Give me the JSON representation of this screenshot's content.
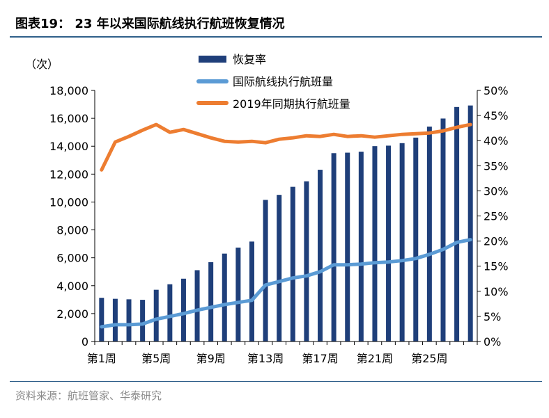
{
  "header": {
    "title": "图表19：  23 年以来国际航线执行航班恢复情况"
  },
  "footer": {
    "source": "资料来源：航班管家、华泰研究"
  },
  "chart_data": {
    "type": "bar",
    "title": "图表19：  23 年以来国际航线执行航班恢复情况",
    "y_left_unit": "（次）",
    "ylim": [
      0,
      18000
    ],
    "y2lim": [
      0,
      0.5
    ],
    "yticks": [
      "0",
      "2,000",
      "4,000",
      "6,000",
      "8,000",
      "10,000",
      "12,000",
      "14,000",
      "16,000",
      "18,000"
    ],
    "y2ticks": [
      "0%",
      "5%",
      "10%",
      "15%",
      "20%",
      "25%",
      "30%",
      "35%",
      "40%",
      "45%",
      "50%"
    ],
    "xtick_labels": [
      "第1周",
      "第5周",
      "第9周",
      "第13周",
      "第17周",
      "第21周",
      "第25周"
    ],
    "xtick_positions": [
      1,
      5,
      9,
      13,
      17,
      21,
      25
    ],
    "x": [
      1,
      2,
      3,
      4,
      5,
      6,
      7,
      8,
      9,
      10,
      11,
      12,
      13,
      14,
      15,
      16,
      17,
      18,
      19,
      20,
      21,
      22,
      23,
      24,
      25,
      26,
      27,
      28
    ],
    "legend_position": "top-center",
    "series": [
      {
        "name": "恢复率",
        "type": "bar",
        "axis": "right",
        "color": "#1f3f7a",
        "values": [
          0.087,
          0.085,
          0.084,
          0.083,
          0.103,
          0.114,
          0.125,
          0.142,
          0.158,
          0.175,
          0.187,
          0.199,
          0.282,
          0.292,
          0.308,
          0.319,
          0.342,
          0.375,
          0.376,
          0.378,
          0.389,
          0.39,
          0.395,
          0.406,
          0.428,
          0.444,
          0.467,
          0.47
        ]
      },
      {
        "name": "国际航线执行航班量",
        "type": "line",
        "axis": "left",
        "color": "#5b9bd5",
        "values": [
          1050,
          1200,
          1200,
          1250,
          1600,
          1800,
          2000,
          2250,
          2450,
          2650,
          2800,
          2950,
          4050,
          4300,
          4550,
          4700,
          5000,
          5500,
          5500,
          5550,
          5650,
          5700,
          5800,
          5950,
          6250,
          6600,
          7100,
          7300
        ]
      },
      {
        "name": "2019年同期执行航班量",
        "type": "line",
        "axis": "left",
        "color": "#ed7d31",
        "values": [
          12300,
          14300,
          14700,
          15150,
          15550,
          15000,
          15200,
          14900,
          14600,
          14350,
          14300,
          14350,
          14250,
          14500,
          14600,
          14750,
          14700,
          14850,
          14700,
          14750,
          14650,
          14750,
          14850,
          14900,
          14950,
          15100,
          15350,
          15550
        ]
      }
    ]
  }
}
